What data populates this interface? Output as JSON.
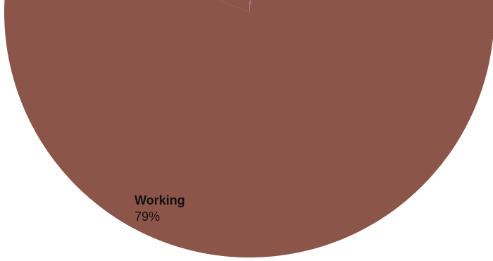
{
  "chart_data": {
    "type": "pie",
    "title": "",
    "slices": [
      {
        "label": "Working",
        "value": 79,
        "display": "79%",
        "color": "#8B5549"
      },
      {
        "label": "",
        "value": 0.5,
        "display": "",
        "color": "#E8212F"
      },
      {
        "label": "",
        "value": 1.0,
        "display": "",
        "color": "#9A6CC8"
      }
    ],
    "legend": "none"
  }
}
